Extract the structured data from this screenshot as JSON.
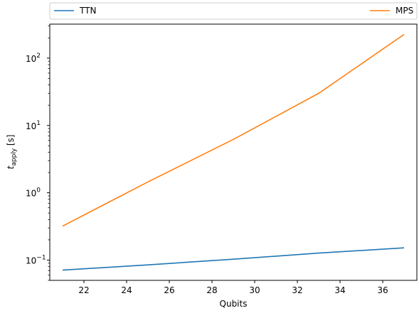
{
  "chart_data": {
    "type": "line",
    "title": "",
    "xlabel": "Qubits",
    "ylabel": {
      "base": "t",
      "sub": "apply",
      "unit": " [s]"
    },
    "xlim": [
      20.4,
      37.6
    ],
    "ylim": [
      0.05,
      320
    ],
    "yscale": "log",
    "grid": false,
    "legend": {
      "placement": "top-outside",
      "entries": [
        "TTN",
        "MPS"
      ]
    },
    "x_ticks": [
      22,
      24,
      26,
      28,
      30,
      32,
      34,
      36
    ],
    "y_ticks": [
      {
        "value": 0.1,
        "base": "10",
        "exp": "−1"
      },
      {
        "value": 1,
        "base": "10",
        "exp": "0"
      },
      {
        "value": 10,
        "base": "10",
        "exp": "1"
      },
      {
        "value": 100,
        "base": "10",
        "exp": "2"
      }
    ],
    "series": [
      {
        "name": "TTN",
        "color": "#1f77b4",
        "x": [
          21,
          25,
          29,
          33,
          37
        ],
        "y": [
          0.071,
          0.085,
          0.103,
          0.127,
          0.152
        ]
      },
      {
        "name": "MPS",
        "color": "#ff7f0e",
        "x": [
          21,
          25,
          29,
          33,
          37
        ],
        "y": [
          0.32,
          1.45,
          6.2,
          30,
          225
        ]
      }
    ]
  }
}
